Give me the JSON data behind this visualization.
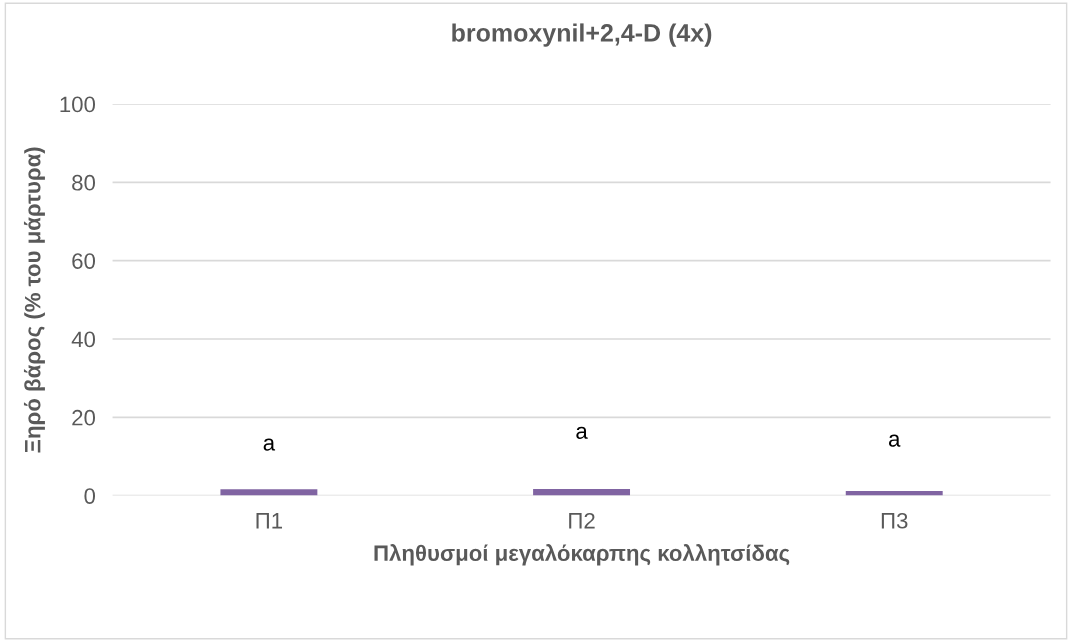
{
  "chart_data": {
    "type": "bar",
    "title": "bromoxynil+2,4-D (4x)",
    "xlabel": "Πληθυσμοί μεγαλόκαρπης κολλητσίδας",
    "ylabel": "Ξηρό βάρος (% του μάρτυρα)",
    "categories": [
      "Π1",
      "Π2",
      "Π3"
    ],
    "series": [
      {
        "color": "#8064a2",
        "values": [
          1.6,
          1.7,
          1.2
        ]
      }
    ],
    "ylim": [
      0,
      100
    ],
    "yticks": [
      0,
      20,
      40,
      60,
      80,
      100
    ],
    "grid": "y",
    "legend": false,
    "annotations": [
      "a",
      "a",
      "a"
    ]
  }
}
